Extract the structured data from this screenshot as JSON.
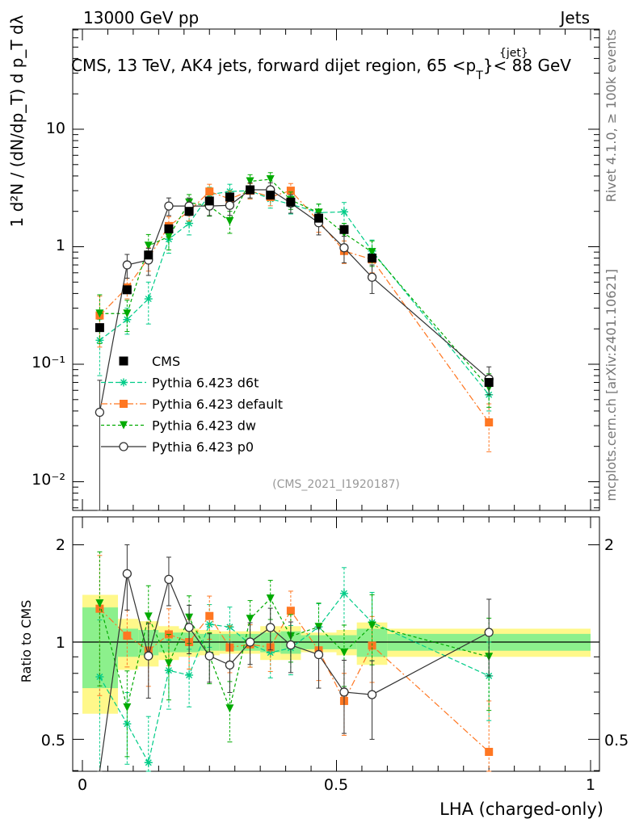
{
  "header": {
    "left": "13000 GeV pp",
    "right": "Jets",
    "title_main": "CMS, 13 TeV, AK4 jets, forward dijet region, 65 <p",
    "title_sup": "{jet}",
    "title_sub": "T",
    "title_tail": "}< 88 GeV",
    "side_top": "Rivet 4.1.0, ≥ 100k events",
    "side_bottom": "mcplots.cern.ch [arXiv:2401.10621]",
    "watermark": "(CMS_2021_I1920187)",
    "xlabel": "LHA (charged-only)",
    "ratio_ylabel": "Ratio to CMS",
    "main_ylabel": "1 d²N / (dN/dp_T) d p_T dλ",
    "main_ytick_labels": [
      "10⁻²",
      "10⁻¹",
      "1",
      "10"
    ],
    "ratio_ytick_labels": [
      "0.5",
      "1",
      "2"
    ],
    "xtick_labels": [
      "0",
      "0.5",
      "1"
    ]
  },
  "colors": {
    "CMS": "#000000",
    "d6t": "#00cc88",
    "default": "#ff7722",
    "dw": "#00aa00",
    "p0": "#333333",
    "band_outer": "#fff88a",
    "band_inner": "#8cf08c"
  },
  "chart_data": {
    "type": "scatter",
    "xlabel": "LHA (charged-only)",
    "ylabel": "1/(dN/dpT) d²N/(dpT dλ)",
    "xlim": [
      0,
      1
    ],
    "ylim_main": [
      0.006,
      30
    ],
    "yscale_main": "log",
    "ylim_ratio": [
      0.35,
      2.3
    ],
    "yscale_ratio": "log",
    "x": [
      0.034,
      0.088,
      0.13,
      0.17,
      0.21,
      0.25,
      0.29,
      0.33,
      0.37,
      0.41,
      0.465,
      0.515,
      0.57,
      0.8
    ],
    "cms": {
      "name": "CMS",
      "values": [
        0.205,
        0.43,
        0.85,
        1.42,
        2.0,
        2.45,
        2.65,
        3.05,
        2.75,
        2.4,
        1.75,
        1.4,
        0.8,
        0.07
      ],
      "bins": [
        0.0,
        0.07,
        0.11,
        0.15,
        0.19,
        0.23,
        0.27,
        0.31,
        0.35,
        0.39,
        0.43,
        0.5,
        0.54,
        0.6,
        1.0
      ],
      "ratio_band_inner": [
        0.28,
        0.1,
        0.09,
        0.07,
        0.07,
        0.06,
        0.06,
        0.06,
        0.07,
        0.08,
        0.05,
        0.05,
        0.1,
        0.06
      ],
      "ratio_band_outer": [
        0.4,
        0.18,
        0.16,
        0.12,
        0.1,
        0.09,
        0.08,
        0.08,
        0.12,
        0.12,
        0.07,
        0.09,
        0.15,
        0.1
      ]
    },
    "series": [
      {
        "name": "Pythia 6.423 d6t",
        "key": "d6t",
        "dash": "6,3",
        "marker": "star",
        "values": [
          0.16,
          0.24,
          0.36,
          1.16,
          1.58,
          2.78,
          2.95,
          3.0,
          2.55,
          2.3,
          1.95,
          1.98,
          0.92,
          0.055
        ],
        "err": [
          0.08,
          0.06,
          0.14,
          0.28,
          0.32,
          0.42,
          0.45,
          0.45,
          0.42,
          0.4,
          0.35,
          0.4,
          0.22,
          0.015
        ]
      },
      {
        "name": "Pythia 6.423 default",
        "key": "default",
        "dash": "8,3,2,3",
        "marker": "square",
        "values": [
          0.26,
          0.45,
          0.8,
          1.5,
          2.0,
          2.95,
          2.55,
          3.0,
          2.65,
          3.0,
          1.65,
          0.92,
          0.78,
          0.032
        ],
        "err": [
          0.12,
          0.09,
          0.18,
          0.3,
          0.35,
          0.45,
          0.42,
          0.45,
          0.42,
          0.45,
          0.32,
          0.2,
          0.18,
          0.014
        ]
      },
      {
        "name": "Pythia 6.423 dw",
        "key": "dw",
        "dash": "4,3",
        "marker": "triangle",
        "values": [
          0.27,
          0.27,
          1.02,
          1.22,
          2.38,
          2.22,
          1.65,
          3.6,
          3.75,
          2.5,
          1.95,
          1.3,
          0.9,
          0.063
        ],
        "err": [
          0.12,
          0.08,
          0.25,
          0.28,
          0.4,
          0.4,
          0.35,
          0.5,
          0.52,
          0.42,
          0.36,
          0.28,
          0.22,
          0.02
        ]
      },
      {
        "name": "Pythia 6.423 p0",
        "key": "p0",
        "dash": "",
        "marker": "circle",
        "values": [
          0.039,
          0.7,
          0.77,
          2.22,
          2.22,
          2.22,
          2.25,
          3.05,
          3.05,
          2.35,
          1.6,
          0.98,
          0.55,
          0.075
        ],
        "err": [
          0.034,
          0.16,
          0.2,
          0.38,
          0.38,
          0.38,
          0.4,
          0.45,
          0.45,
          0.42,
          0.34,
          0.25,
          0.15,
          0.02
        ]
      }
    ]
  }
}
